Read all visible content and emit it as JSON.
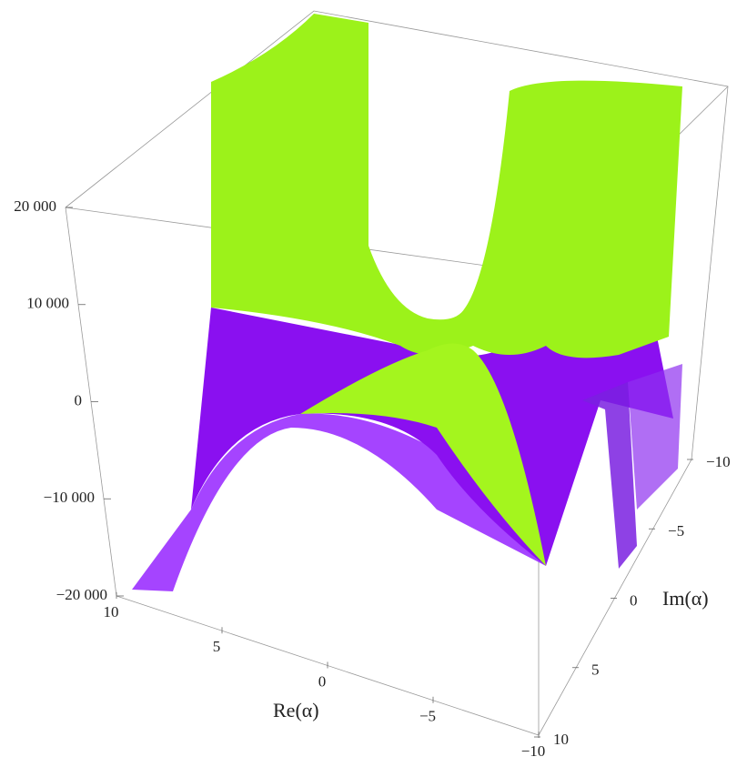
{
  "chart_data": {
    "type": "surface3d",
    "xlabel": "Re(α)",
    "ylabel": "Im(α)",
    "xlim": [
      10,
      -10
    ],
    "xticks": [
      10,
      5,
      0,
      {
        "value": -5,
        "label": "−5"
      },
      {
        "value": -10,
        "label": "−10"
      }
    ],
    "ylim": [
      -10,
      10
    ],
    "yticks": [
      {
        "value": -10,
        "label": "−10"
      },
      {
        "value": -5,
        "label": "−5"
      },
      0,
      5,
      10
    ],
    "zlim": [
      -20000,
      20000
    ],
    "zticks": [
      {
        "value": 20000,
        "label": "20 000"
      },
      {
        "value": 10000,
        "label": "10 000"
      },
      0,
      {
        "value": -10000,
        "label": "−10 000"
      },
      {
        "value": -20000,
        "label": "−20 000"
      }
    ]
  }
}
